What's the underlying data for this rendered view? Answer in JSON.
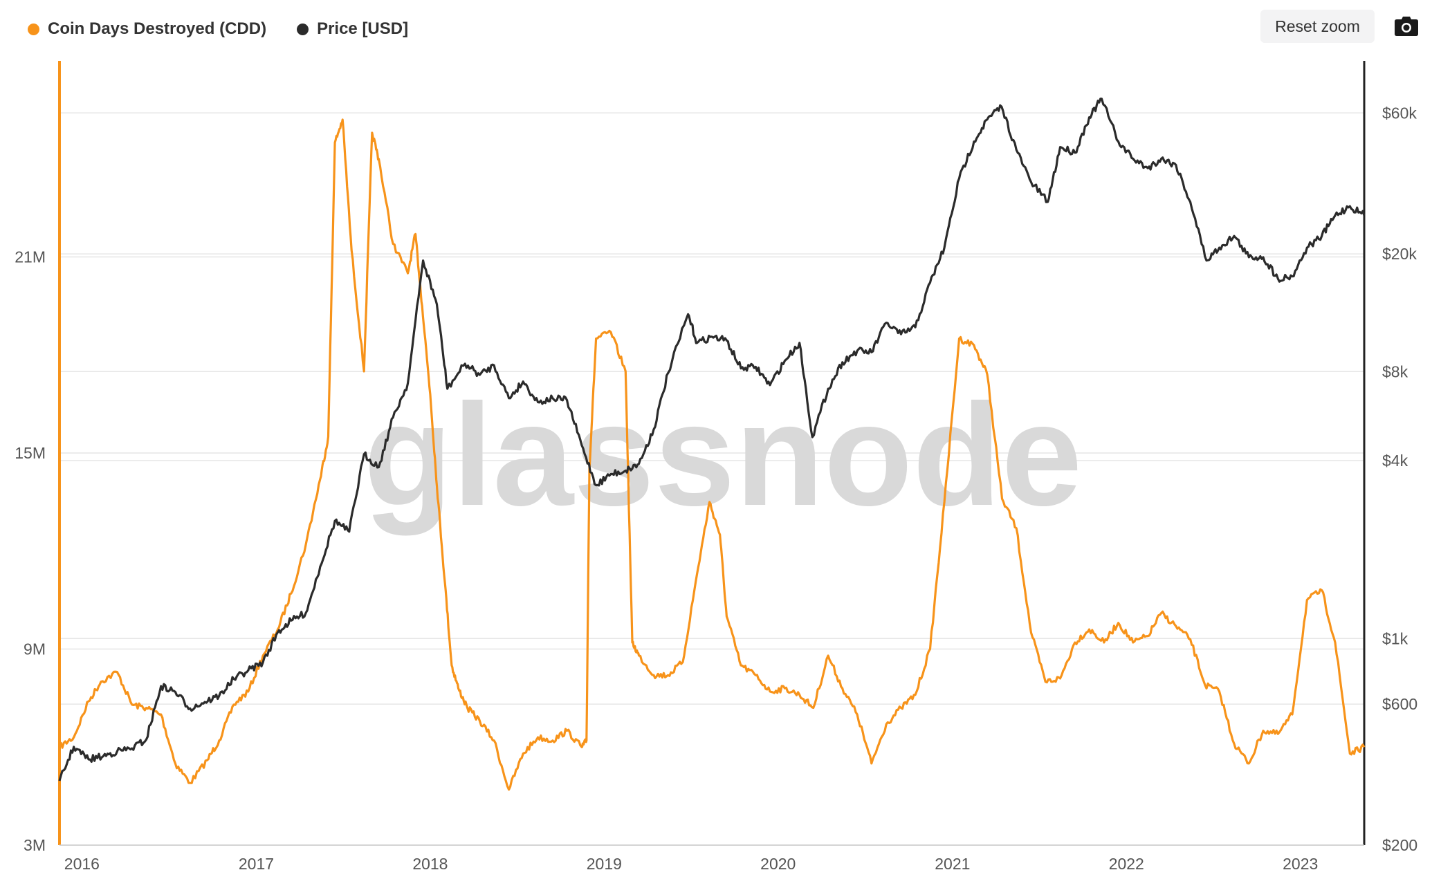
{
  "toolbar": {
    "reset_zoom_label": "Reset zoom",
    "camera_icon": "camera-icon"
  },
  "watermark": "glassnode",
  "colors": {
    "cdd": "#f7931a",
    "price": "#2b2b2b",
    "grid": "#e6e6e6"
  },
  "chart_data": {
    "type": "line",
    "legend": [
      "Coin Days Destroyed (CDD)",
      "Price [USD]"
    ],
    "legend_position": "top-left",
    "grid": true,
    "x_tick_labels": [
      "2016",
      "2017",
      "2018",
      "2019",
      "2020",
      "2021",
      "2022",
      "2023"
    ],
    "x_range": [
      "2015-11-15",
      "2023-05-15"
    ],
    "y_left": {
      "ticks": [
        "3M",
        "9M",
        "15M",
        "21M"
      ],
      "tick_values": [
        3000000,
        9000000,
        15000000,
        21000000
      ],
      "range": [
        3000000,
        27000000
      ]
    },
    "y_right": {
      "scale": "log",
      "ticks": [
        "$200",
        "$600",
        "$1k",
        "$4k",
        "$8k",
        "$20k",
        "$60k"
      ],
      "tick_values": [
        200,
        600,
        1000,
        4000,
        8000,
        20000,
        60000
      ],
      "range": [
        200,
        90000
      ]
    },
    "series": [
      {
        "name": "Coin Days Destroyed (CDD)",
        "axis": "left",
        "color": "#f7931a",
        "x": [
          "2015-11-15",
          "2015-12-15",
          "2016-01-15",
          "2016-02-10",
          "2016-03-15",
          "2016-04-15",
          "2016-05-15",
          "2016-06-15",
          "2016-07-15",
          "2016-08-15",
          "2016-09-20",
          "2016-10-15",
          "2016-11-15",
          "2016-12-15",
          "2017-01-15",
          "2017-02-15",
          "2017-03-15",
          "2017-04-15",
          "2017-05-15",
          "2017-06-01",
          "2017-06-15",
          "2017-07-01",
          "2017-07-20",
          "2017-08-15",
          "2017-09-01",
          "2017-09-15",
          "2017-10-15",
          "2017-11-15",
          "2017-12-01",
          "2017-12-15",
          "2018-01-01",
          "2018-01-15",
          "2018-02-01",
          "2018-02-15",
          "2018-03-01",
          "2018-03-20",
          "2018-04-15",
          "2018-05-15",
          "2018-06-15",
          "2018-07-15",
          "2018-08-15",
          "2018-09-15",
          "2018-10-15",
          "2018-11-15",
          "2018-11-25",
          "2018-12-01",
          "2018-12-15",
          "2019-01-15",
          "2019-02-15",
          "2019-03-01",
          "2019-03-15",
          "2019-04-15",
          "2019-05-15",
          "2019-06-15",
          "2019-07-15",
          "2019-08-10",
          "2019-09-01",
          "2019-09-15",
          "2019-10-15",
          "2019-11-15",
          "2019-12-15",
          "2020-01-15",
          "2020-02-15",
          "2020-03-15",
          "2020-04-15",
          "2020-05-15",
          "2020-06-15",
          "2020-07-15",
          "2020-08-15",
          "2020-09-15",
          "2020-10-15",
          "2020-11-15",
          "2020-12-15",
          "2021-01-15",
          "2021-02-15",
          "2021-03-15",
          "2021-04-15",
          "2021-05-15",
          "2021-06-15",
          "2021-07-15",
          "2021-08-15",
          "2021-09-15",
          "2021-10-15",
          "2021-11-15",
          "2021-12-15",
          "2022-01-15",
          "2022-02-15",
          "2022-03-15",
          "2022-04-15",
          "2022-05-15",
          "2022-06-15",
          "2022-07-15",
          "2022-08-15",
          "2022-09-15",
          "2022-10-15",
          "2022-11-15",
          "2022-12-15",
          "2023-01-15",
          "2023-02-15",
          "2023-03-15",
          "2023-04-15",
          "2023-05-15"
        ],
        "values": [
          6000000,
          6300000,
          7400000,
          8000000,
          8300000,
          7300000,
          7200000,
          7000000,
          5500000,
          4900000,
          5600000,
          6200000,
          7300000,
          7700000,
          8800000,
          9600000,
          10700000,
          12200000,
          14200000,
          15500000,
          24500000,
          25200000,
          21200000,
          17500000,
          24800000,
          24000000,
          21400000,
          20500000,
          21700000,
          19500000,
          16800000,
          14000000,
          11000000,
          8500000,
          7800000,
          7200000,
          6800000,
          6200000,
          4700000,
          5800000,
          6300000,
          6200000,
          6500000,
          6000000,
          6200000,
          14500000,
          18500000,
          18700000,
          17500000,
          9200000,
          8800000,
          8200000,
          8200000,
          8600000,
          11300000,
          13500000,
          12500000,
          10000000,
          8500000,
          8200000,
          7700000,
          7800000,
          7600000,
          7200000,
          8800000,
          7800000,
          7000000,
          5500000,
          6700000,
          7200000,
          7600000,
          9000000,
          13500000,
          18500000,
          18300000,
          17400000,
          13600000,
          12700000,
          9500000,
          8000000,
          8100000,
          9200000,
          9600000,
          9200000,
          9800000,
          9200000,
          9400000,
          10100000,
          9700000,
          9300000,
          7900000,
          7700000,
          6100000,
          5500000,
          6500000,
          6400000,
          7000000,
          10500000,
          10800000,
          9200000,
          5800000,
          6000000
        ]
      },
      {
        "name": "Price [USD]",
        "axis": "right",
        "color": "#2b2b2b",
        "x": [
          "2015-11-15",
          "2015-12-15",
          "2016-01-15",
          "2016-02-15",
          "2016-03-15",
          "2016-04-15",
          "2016-05-15",
          "2016-06-15",
          "2016-07-15",
          "2016-08-15",
          "2016-09-15",
          "2016-10-15",
          "2016-11-15",
          "2016-12-15",
          "2017-01-15",
          "2017-02-15",
          "2017-03-15",
          "2017-04-15",
          "2017-05-15",
          "2017-06-15",
          "2017-07-15",
          "2017-08-15",
          "2017-09-15",
          "2017-10-15",
          "2017-11-15",
          "2017-12-17",
          "2018-01-15",
          "2018-02-06",
          "2018-03-15",
          "2018-04-15",
          "2018-05-15",
          "2018-06-15",
          "2018-07-15",
          "2018-08-15",
          "2018-09-15",
          "2018-10-15",
          "2018-11-15",
          "2018-12-15",
          "2019-01-15",
          "2019-02-15",
          "2019-03-15",
          "2019-04-15",
          "2019-05-15",
          "2019-06-26",
          "2019-07-15",
          "2019-08-15",
          "2019-09-15",
          "2019-10-15",
          "2019-11-15",
          "2019-12-15",
          "2020-01-15",
          "2020-02-15",
          "2020-03-13",
          "2020-04-15",
          "2020-05-15",
          "2020-06-15",
          "2020-07-15",
          "2020-08-15",
          "2020-09-15",
          "2020-10-15",
          "2020-11-15",
          "2020-12-15",
          "2021-01-15",
          "2021-02-15",
          "2021-03-15",
          "2021-04-14",
          "2021-05-15",
          "2021-06-15",
          "2021-07-20",
          "2021-08-15",
          "2021-09-15",
          "2021-10-15",
          "2021-11-10",
          "2021-12-15",
          "2022-01-15",
          "2022-02-15",
          "2022-03-15",
          "2022-04-15",
          "2022-05-15",
          "2022-06-18",
          "2022-07-15",
          "2022-08-15",
          "2022-09-15",
          "2022-10-15",
          "2022-11-15",
          "2022-12-15",
          "2023-01-15",
          "2023-02-15",
          "2023-03-15",
          "2023-04-15",
          "2023-05-15"
        ],
        "values": [
          330,
          430,
          390,
          400,
          415,
          425,
          455,
          690,
          660,
          580,
          610,
          640,
          730,
          780,
          830,
          1050,
          1150,
          1220,
          1750,
          2500,
          2300,
          4200,
          3800,
          5600,
          7300,
          19000,
          13500,
          7000,
          8500,
          7800,
          8400,
          6500,
          7400,
          6300,
          6500,
          6400,
          4500,
          3300,
          3600,
          3700,
          3900,
          5100,
          7900,
          12500,
          10000,
          10500,
          10200,
          8200,
          8300,
          7200,
          8700,
          10000,
          4800,
          7000,
          8600,
          9400,
          9300,
          11700,
          10700,
          11300,
          16000,
          21000,
          36000,
          48000,
          57000,
          63000,
          45000,
          35000,
          30000,
          46000,
          44000,
          58000,
          67000,
          48000,
          42000,
          39000,
          42000,
          40000,
          30000,
          19000,
          21000,
          23000,
          19500,
          19500,
          16500,
          16800,
          21000,
          23000,
          27000,
          29000,
          27000
        ]
      }
    ]
  }
}
